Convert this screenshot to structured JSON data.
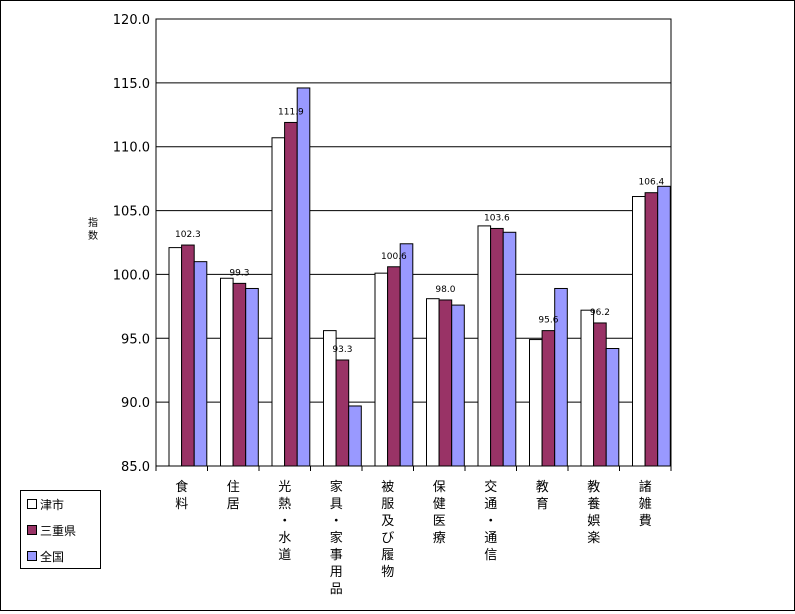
{
  "chart_data": {
    "type": "bar",
    "ylabel": "指数",
    "ylim": [
      85,
      120
    ],
    "yticks": [
      "85.0",
      "90.0",
      "95.0",
      "100.0",
      "105.0",
      "110.0",
      "115.0",
      "120.0"
    ],
    "grid": true,
    "legend_position": "bottom-left",
    "categories": [
      "食料",
      "住居",
      "光熱・水道",
      "家具・家事用品",
      "被服及び履物",
      "保健医療",
      "交通・通信",
      "教育",
      "教養娯楽",
      "諸雑費"
    ],
    "series": [
      {
        "name": "津市",
        "color": "#ffffff",
        "values": [
          102.1,
          99.7,
          110.7,
          95.6,
          100.1,
          98.1,
          103.8,
          94.9,
          97.2,
          106.1
        ]
      },
      {
        "name": "三重県",
        "color": "#993366",
        "values": [
          102.3,
          99.3,
          111.9,
          93.3,
          100.6,
          98.0,
          103.6,
          95.6,
          96.2,
          106.4
        ]
      },
      {
        "name": "全国",
        "color": "#9999ff",
        "values": [
          101.0,
          98.9,
          114.6,
          89.7,
          102.4,
          97.6,
          103.3,
          98.9,
          94.2,
          106.9
        ]
      }
    ],
    "data_labels": {
      "series": "三重県",
      "values": [
        "102.3",
        "99.3",
        "111.9",
        "93.3",
        "100.6",
        "98.0",
        "103.6",
        "95.6",
        "96.2",
        "106.4"
      ]
    }
  }
}
